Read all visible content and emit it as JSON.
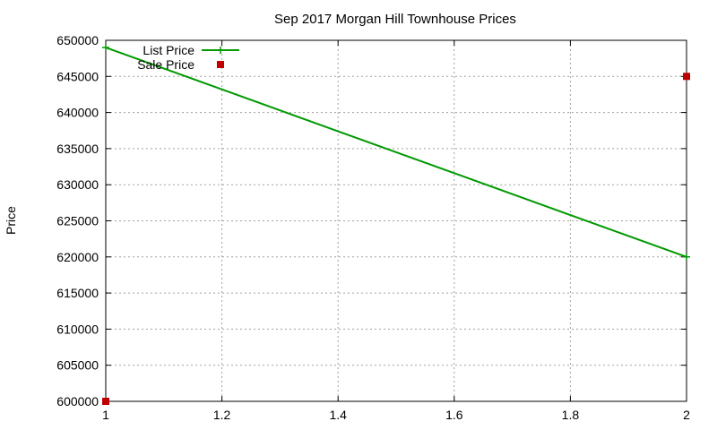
{
  "chart_data": {
    "type": "line",
    "title": "Sep 2017 Morgan Hill Townhouse Prices",
    "xlabel": "",
    "ylabel": "Price",
    "xlim": [
      1,
      2
    ],
    "ylim": [
      600000,
      650000
    ],
    "x_ticks": [
      1,
      1.2,
      1.4,
      1.6,
      1.8,
      2
    ],
    "x_tick_labels": [
      "1",
      "1.2",
      "1.4",
      "1.6",
      "1.8",
      "2"
    ],
    "y_ticks": [
      600000,
      605000,
      610000,
      615000,
      620000,
      625000,
      630000,
      635000,
      640000,
      645000,
      650000
    ],
    "y_tick_labels": [
      "600000",
      "605000",
      "610000",
      "615000",
      "620000",
      "625000",
      "630000",
      "635000",
      "640000",
      "645000",
      "650000"
    ],
    "grid": true,
    "legend_position": "top-left",
    "series": [
      {
        "name": "List Price",
        "type": "line",
        "color": "#009900",
        "marker": "plus",
        "x": [
          1,
          2
        ],
        "y": [
          649000,
          620000
        ]
      },
      {
        "name": "Sale Price",
        "type": "scatter",
        "color": "#c00000",
        "marker": "square",
        "x": [
          1,
          2
        ],
        "y": [
          600000,
          645000
        ]
      }
    ]
  }
}
